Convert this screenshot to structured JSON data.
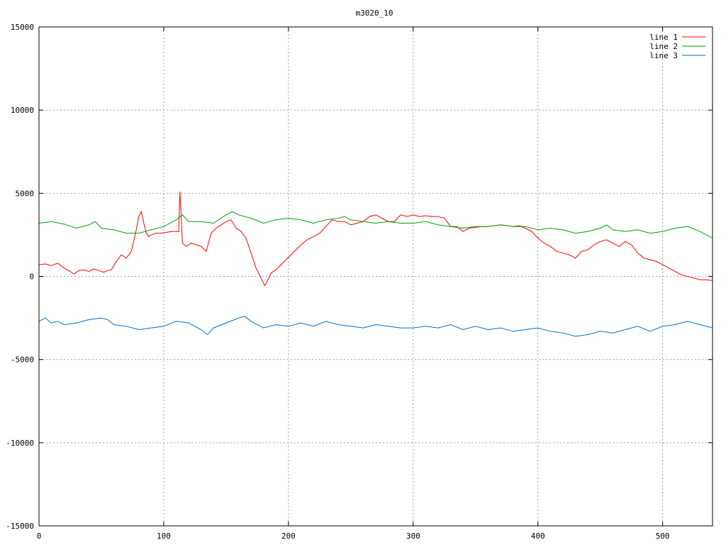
{
  "chart_data": {
    "type": "line",
    "title": "m3020_10",
    "xlabel": "",
    "ylabel": "",
    "xlim": [
      0,
      540
    ],
    "ylim": [
      -15000,
      15000
    ],
    "x_ticks": [
      0,
      100,
      200,
      300,
      400,
      500
    ],
    "y_ticks": [
      -15000,
      -10000,
      -5000,
      0,
      5000,
      10000,
      15000
    ],
    "grid": true,
    "legend_position": "top-right",
    "series": [
      {
        "name": "line 1",
        "color": "#ff0000",
        "x": [
          0,
          5,
          10,
          15,
          20,
          25,
          28,
          32,
          36,
          40,
          44,
          48,
          52,
          55,
          58,
          62,
          66,
          70,
          74,
          78,
          80,
          82,
          84,
          86,
          88,
          90,
          94,
          98,
          102,
          106,
          110,
          112,
          113,
          115,
          118,
          122,
          126,
          130,
          134,
          138,
          142,
          146,
          150,
          154,
          158,
          162,
          166,
          170,
          174,
          178,
          181,
          183,
          186,
          190,
          194,
          198,
          202,
          206,
          210,
          215,
          220,
          225,
          230,
          235,
          240,
          245,
          250,
          255,
          260,
          265,
          270,
          275,
          280,
          285,
          290,
          295,
          300,
          305,
          310,
          315,
          320,
          325,
          330,
          335,
          340,
          345,
          350,
          355,
          360,
          365,
          370,
          375,
          380,
          385,
          390,
          395,
          400,
          405,
          410,
          415,
          420,
          425,
          430,
          435,
          440,
          445,
          450,
          455,
          460,
          465,
          470,
          475,
          480,
          485,
          490,
          495,
          500,
          505,
          510,
          515,
          520,
          525,
          530,
          535,
          540
        ],
        "y": [
          700,
          750,
          650,
          800,
          500,
          300,
          150,
          350,
          400,
          300,
          450,
          350,
          250,
          350,
          400,
          900,
          1300,
          1100,
          1500,
          2800,
          3600,
          3900,
          3200,
          2600,
          2400,
          2500,
          2600,
          2600,
          2650,
          2700,
          2700,
          2700,
          5100,
          2000,
          1800,
          2000,
          1900,
          1800,
          1500,
          2600,
          2900,
          3100,
          3300,
          3400,
          2900,
          2700,
          2300,
          1400,
          500,
          -100,
          -550,
          -300,
          200,
          400,
          700,
          1000,
          1300,
          1600,
          1900,
          2200,
          2400,
          2600,
          3000,
          3400,
          3300,
          3300,
          3100,
          3200,
          3300,
          3600,
          3700,
          3500,
          3300,
          3300,
          3700,
          3600,
          3700,
          3600,
          3650,
          3600,
          3600,
          3500,
          3000,
          3000,
          2700,
          2900,
          2950,
          3000,
          3000,
          3050,
          3100,
          3050,
          3000,
          3050,
          2900,
          2700,
          2300,
          2000,
          1800,
          1500,
          1400,
          1300,
          1100,
          1500,
          1600,
          1900,
          2100,
          2200,
          2000,
          1800,
          2100,
          1900,
          1400,
          1100,
          1000,
          900,
          700,
          500,
          300,
          100,
          0,
          -100,
          -200,
          -200,
          -250
        ]
      },
      {
        "name": "line 2",
        "color": "#00a000",
        "x": [
          0,
          10,
          20,
          30,
          40,
          45,
          50,
          60,
          70,
          80,
          90,
          100,
          110,
          115,
          120,
          130,
          140,
          150,
          155,
          160,
          170,
          180,
          190,
          200,
          210,
          220,
          230,
          240,
          245,
          250,
          260,
          270,
          280,
          290,
          300,
          310,
          320,
          330,
          340,
          350,
          360,
          370,
          380,
          390,
          400,
          410,
          420,
          430,
          440,
          450,
          455,
          460,
          470,
          480,
          490,
          500,
          510,
          520,
          530,
          540
        ],
        "y": [
          3200,
          3300,
          3150,
          2900,
          3100,
          3300,
          2900,
          2800,
          2600,
          2600,
          2800,
          3000,
          3400,
          3700,
          3300,
          3300,
          3200,
          3700,
          3900,
          3700,
          3500,
          3200,
          3400,
          3500,
          3400,
          3200,
          3400,
          3500,
          3600,
          3400,
          3300,
          3200,
          3300,
          3200,
          3200,
          3300,
          3100,
          3000,
          2900,
          3000,
          3000,
          3100,
          3000,
          3000,
          2800,
          2900,
          2800,
          2600,
          2700,
          2900,
          3100,
          2800,
          2700,
          2800,
          2600,
          2700,
          2900,
          3000,
          2700,
          2300
        ]
      },
      {
        "name": "line 3",
        "color": "#0070cc",
        "x": [
          0,
          5,
          10,
          15,
          20,
          30,
          40,
          50,
          55,
          60,
          70,
          80,
          90,
          100,
          110,
          120,
          130,
          135,
          140,
          150,
          160,
          165,
          170,
          180,
          190,
          200,
          210,
          220,
          230,
          240,
          250,
          260,
          270,
          280,
          290,
          300,
          310,
          320,
          330,
          340,
          350,
          360,
          370,
          380,
          390,
          400,
          410,
          420,
          430,
          440,
          450,
          460,
          470,
          480,
          490,
          500,
          510,
          520,
          530,
          540
        ],
        "y": [
          -2700,
          -2500,
          -2800,
          -2700,
          -2900,
          -2800,
          -2600,
          -2500,
          -2600,
          -2900,
          -3000,
          -3200,
          -3100,
          -3000,
          -2700,
          -2800,
          -3200,
          -3500,
          -3100,
          -2800,
          -2500,
          -2400,
          -2700,
          -3100,
          -2900,
          -3000,
          -2800,
          -3000,
          -2700,
          -2900,
          -3000,
          -3100,
          -2900,
          -3000,
          -3100,
          -3100,
          -3000,
          -3100,
          -2900,
          -3200,
          -3000,
          -3200,
          -3100,
          -3300,
          -3200,
          -3100,
          -3300,
          -3400,
          -3600,
          -3500,
          -3300,
          -3400,
          -3200,
          -3000,
          -3300,
          -3000,
          -2900,
          -2700,
          -2900,
          -3100
        ]
      }
    ]
  }
}
